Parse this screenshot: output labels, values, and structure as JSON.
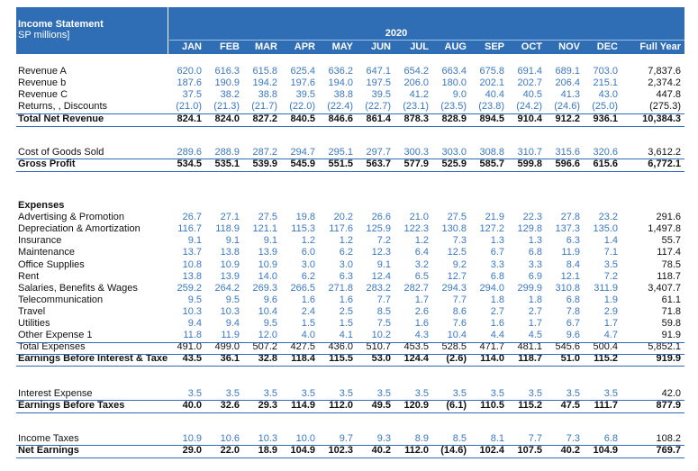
{
  "header": {
    "title": "Income Statement",
    "subtitle": "SP millions]",
    "year": "2020",
    "columns": [
      "JAN",
      "FEB",
      "MAR",
      "APR",
      "MAY",
      "JUN",
      "JUL",
      "AUG",
      "SEP",
      "OCT",
      "NOV",
      "DEC"
    ],
    "total_column": "Full Year"
  },
  "rows": [
    {
      "label": "Revenue  A",
      "values": [
        "620.0",
        "616.3",
        "615.8",
        "625.4",
        "636.2",
        "647.1",
        "654.2",
        "663.4",
        "675.8",
        "691.4",
        "689.1",
        "703.0"
      ],
      "full_year": "7,837.6"
    },
    {
      "label": "Revenue  b",
      "values": [
        "187.6",
        "190.9",
        "194.2",
        "197.6",
        "194.0",
        "197.5",
        "206.0",
        "180.0",
        "202.1",
        "202.7",
        "206.4",
        "215.1"
      ],
      "full_year": "2,374.2"
    },
    {
      "label": "Revenue  C",
      "values": [
        "37.5",
        "38.2",
        "38.8",
        "39.5",
        "38.8",
        "39.5",
        "41.2",
        "9.0",
        "40.4",
        "40.5",
        "41.3",
        "43.0"
      ],
      "full_year": "447.8"
    },
    {
      "label": "Returns, , Discounts",
      "values": [
        "(21.0)",
        "(21.3)",
        "(21.7)",
        "(22.0)",
        "(22.4)",
        "(22.7)",
        "(23.1)",
        "(23.5)",
        "(23.8)",
        "(24.2)",
        "(24.6)",
        "(25.0)"
      ],
      "full_year": "(275.3)"
    },
    {
      "label": "Total Net Revenue",
      "values": [
        "824.1",
        "824.0",
        "827.2",
        "840.5",
        "846.6",
        "861.4",
        "878.3",
        "828.9",
        "894.5",
        "910.4",
        "912.2",
        "936.1"
      ],
      "full_year": "10,384.3"
    },
    {
      "label": "Cost of Goods Sold",
      "values": [
        "289.6",
        "288.9",
        "287.2",
        "294.7",
        "295.1",
        "297.7",
        "300.3",
        "303.0",
        "308.8",
        "310.7",
        "315.6",
        "320.6"
      ],
      "full_year": "3,612.2"
    },
    {
      "label": "Gross Profit",
      "values": [
        "534.5",
        "535.1",
        "539.9",
        "545.9",
        "551.5",
        "563.7",
        "577.9",
        "525.9",
        "585.7",
        "599.8",
        "596.6",
        "615.6"
      ],
      "full_year": "6,772.1"
    },
    {
      "label": "Expenses"
    },
    {
      "label": "Advertising & Promotion",
      "values": [
        "26.7",
        "27.1",
        "27.5",
        "19.8",
        "20.2",
        "26.6",
        "21.0",
        "27.5",
        "21.9",
        "22.3",
        "27.8",
        "23.2"
      ],
      "full_year": "291.6"
    },
    {
      "label": "Depreciation & Amortization",
      "values": [
        "116.7",
        "118.9",
        "121.1",
        "115.3",
        "117.6",
        "125.9",
        "122.3",
        "130.8",
        "127.2",
        "129.8",
        "137.3",
        "135.0"
      ],
      "full_year": "1,497.8"
    },
    {
      "label": "Insurance",
      "values": [
        "9.1",
        "9.1",
        "9.1",
        "1.2",
        "1.2",
        "7.2",
        "1.2",
        "7.3",
        "1.3",
        "1.3",
        "6.3",
        "1.4"
      ],
      "full_year": "55.7"
    },
    {
      "label": "Maintenance",
      "values": [
        "13.7",
        "13.8",
        "13.9",
        "6.0",
        "6.2",
        "12.3",
        "6.4",
        "12.5",
        "6.7",
        "6.8",
        "11.9",
        "7.1"
      ],
      "full_year": "117.4"
    },
    {
      "label": "Office Supplies",
      "values": [
        "10.8",
        "10.9",
        "10.9",
        "3.0",
        "3.0",
        "9.1",
        "3.2",
        "9.2",
        "3.3",
        "3.3",
        "8.4",
        "3.5"
      ],
      "full_year": "78.5"
    },
    {
      "label": "Rent",
      "values": [
        "13.8",
        "13.9",
        "14.0",
        "6.2",
        "6.3",
        "12.4",
        "6.5",
        "12.7",
        "6.8",
        "6.9",
        "12.1",
        "7.2"
      ],
      "full_year": "118.7"
    },
    {
      "label": "Salaries, Benefits & Wages",
      "values": [
        "259.2",
        "264.2",
        "269.3",
        "266.5",
        "271.8",
        "283.2",
        "282.7",
        "294.3",
        "294.0",
        "299.9",
        "310.8",
        "311.9"
      ],
      "full_year": "3,407.7"
    },
    {
      "label": "Telecommunication",
      "values": [
        "9.5",
        "9.5",
        "9.6",
        "1.6",
        "1.6",
        "7.7",
        "1.7",
        "7.7",
        "1.8",
        "1.8",
        "6.8",
        "1.9"
      ],
      "full_year": "61.1"
    },
    {
      "label": "Travel",
      "values": [
        "10.3",
        "10.3",
        "10.4",
        "2.4",
        "2.5",
        "8.5",
        "2.6",
        "8.6",
        "2.7",
        "2.7",
        "7.8",
        "2.9"
      ],
      "full_year": "71.8"
    },
    {
      "label": "Utilities",
      "values": [
        "9.4",
        "9.4",
        "9.5",
        "1.5",
        "1.5",
        "7.5",
        "1.6",
        "7.6",
        "1.6",
        "1.7",
        "6.7",
        "1.7"
      ],
      "full_year": "59.8"
    },
    {
      "label": "Other Expense 1",
      "values": [
        "11.8",
        "11.9",
        "12.0",
        "4.0",
        "4.1",
        "10.2",
        "4.3",
        "10.4",
        "4.4",
        "4.5",
        "9.6",
        "4.7"
      ],
      "full_year": "91.9"
    },
    {
      "label": "Total Expenses",
      "values": [
        "491.0",
        "499.0",
        "507.2",
        "427.5",
        "436.0",
        "510.7",
        "453.5",
        "528.5",
        "471.7",
        "481.1",
        "545.6",
        "500.4"
      ],
      "full_year": "5,852.1"
    },
    {
      "label": "Earnings Before Interest & Taxe",
      "values": [
        "43.5",
        "36.1",
        "32.8",
        "118.4",
        "115.5",
        "53.0",
        "124.4",
        "(2.6)",
        "114.0",
        "118.7",
        "51.0",
        "115.2"
      ],
      "full_year": "919.9"
    },
    {
      "label": "Interest Expense",
      "values": [
        "3.5",
        "3.5",
        "3.5",
        "3.5",
        "3.5",
        "3.5",
        "3.5",
        "3.5",
        "3.5",
        "3.5",
        "3.5",
        "3.5"
      ],
      "full_year": "42.0"
    },
    {
      "label": "Earnings Before Taxes",
      "values": [
        "40.0",
        "32.6",
        "29.3",
        "114.9",
        "112.0",
        "49.5",
        "120.9",
        "(6.1)",
        "110.5",
        "115.2",
        "47.5",
        "111.7"
      ],
      "full_year": "877.9"
    },
    {
      "label": "Income Taxes",
      "values": [
        "10.9",
        "10.6",
        "10.3",
        "10.0",
        "9.7",
        "9.3",
        "8.9",
        "8.5",
        "8.1",
        "7.7",
        "7.3",
        "6.8"
      ],
      "full_year": "108.2"
    },
    {
      "label": "Net Earnings",
      "values": [
        "29.0",
        "22.0",
        "18.9",
        "104.9",
        "102.3",
        "40.2",
        "112.0",
        "(14.6)",
        "102.4",
        "107.5",
        "40.2",
        "104.9"
      ],
      "full_year": "769.7"
    }
  ]
}
